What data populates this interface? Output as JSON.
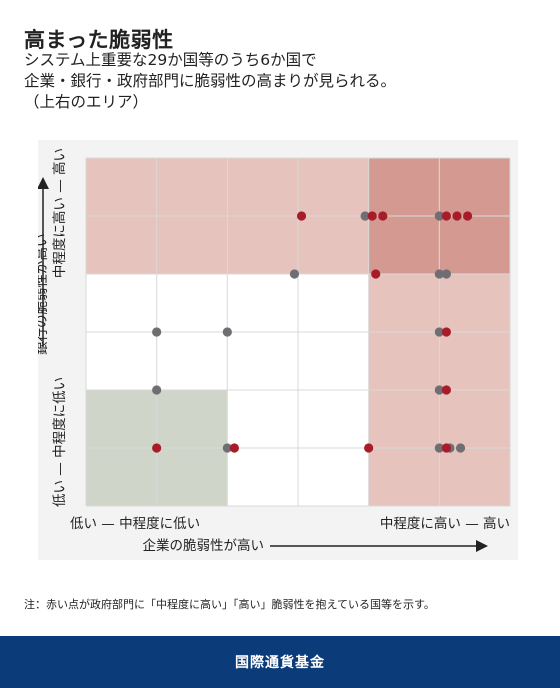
{
  "title": "高まった脆弱性",
  "subtitle_lines": [
    "システム上重要な29か国等のうち6か国で",
    "企業・銀行・政府部門に脆弱性の高まりが見られる。",
    "（上右のエリア）"
  ],
  "note": "注：赤い点が政府部門に「中程度に高い」「高い」脆弱性を抱えている国等を示す。",
  "footer": "国際通貨基金",
  "colors": {
    "red_point": "#a81c2a",
    "gray_point": "#6e6e73",
    "shade_light_red": "#e6c3bc",
    "shade_dark_red": "#d49a92",
    "shade_green": "#cfd5c8",
    "grid": "#d9d9d9",
    "footer_bg": "#0c3b7a"
  },
  "chart_data": {
    "type": "scatter",
    "xlabel": "企業の脆弱性が高い",
    "ylabel": "銀行の脆弱性が高い",
    "x_tick_labels": [
      "低い — 中程度に低い",
      "中程度に高い — 高い"
    ],
    "y_tick_labels": [
      "低い — 中程度に低い",
      "中程度に高い — 高い"
    ],
    "grid": true,
    "xlim": [
      0,
      6
    ],
    "ylim": [
      0,
      6
    ],
    "regions": [
      {
        "name": "green",
        "x": [
          0,
          2
        ],
        "y": [
          0,
          2
        ]
      },
      {
        "name": "light-red-top",
        "x": [
          0,
          6
        ],
        "y": [
          4,
          6
        ]
      },
      {
        "name": "light-red-right",
        "x": [
          4,
          6
        ],
        "y": [
          0,
          6
        ]
      },
      {
        "name": "dark-red",
        "x": [
          4,
          6
        ],
        "y": [
          4,
          6
        ]
      }
    ],
    "series": [
      {
        "name": "政府部門の脆弱性が「中程度に高い」「高い」",
        "points": [
          [
            3.05,
            5
          ],
          [
            4.05,
            5
          ],
          [
            4.2,
            5
          ],
          [
            5.1,
            5
          ],
          [
            5.25,
            5
          ],
          [
            5.4,
            5
          ],
          [
            4.1,
            4
          ],
          [
            5.1,
            3
          ],
          [
            5.1,
            2
          ],
          [
            1,
            1
          ],
          [
            2.1,
            1
          ],
          [
            4.0,
            1
          ],
          [
            5.1,
            1
          ]
        ]
      },
      {
        "points": [
          [
            3.95,
            5
          ],
          [
            5.0,
            5
          ],
          [
            2.95,
            4
          ],
          [
            5.0,
            4
          ],
          [
            5.1,
            4
          ],
          [
            1,
            3
          ],
          [
            2,
            3
          ],
          [
            5.0,
            3
          ],
          [
            1,
            2
          ],
          [
            5.0,
            2
          ],
          [
            2.0,
            1
          ],
          [
            5.0,
            1
          ],
          [
            5.15,
            1
          ],
          [
            5.3,
            1
          ]
        ]
      }
    ]
  }
}
